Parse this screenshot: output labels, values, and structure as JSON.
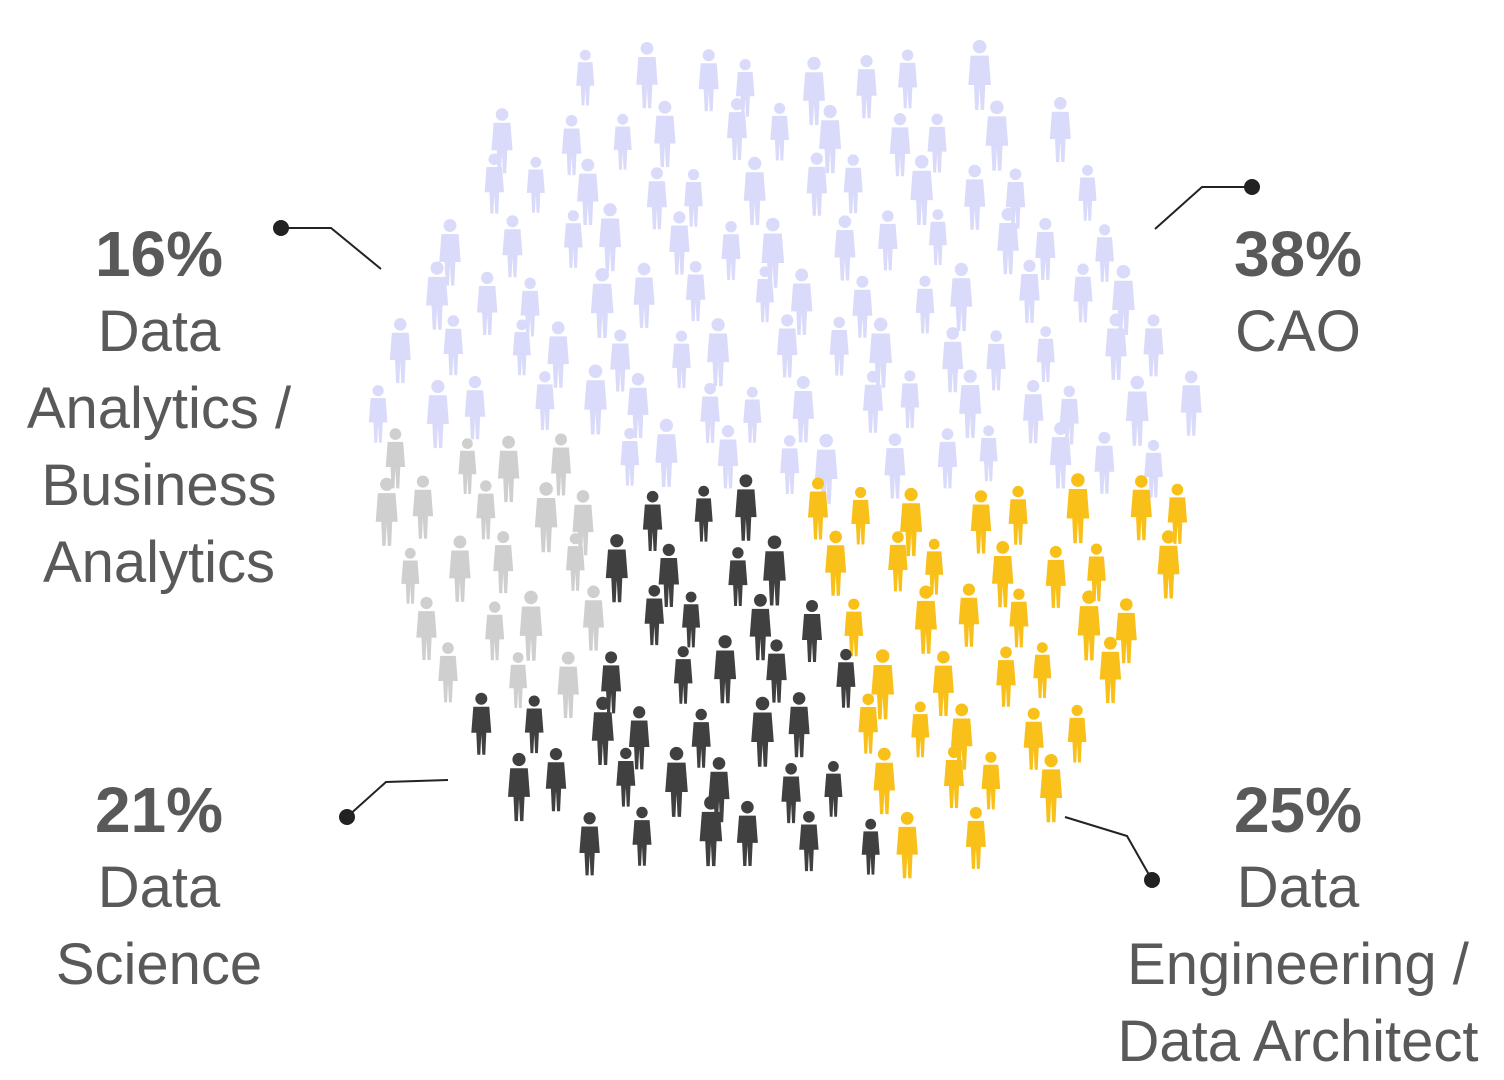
{
  "chart_data": {
    "type": "pictograph",
    "segments": [
      {
        "percent": "16%",
        "value": 16,
        "label": "Data Analytics / Business Analytics",
        "color": "#cfcfcf"
      },
      {
        "percent": "38%",
        "value": 38,
        "label": "CAO",
        "color": "#dadafa"
      },
      {
        "percent": "21%",
        "value": 21,
        "label": "Data Science",
        "color": "#404040"
      },
      {
        "percent": "25%",
        "value": 25,
        "label": "Data Engineering / Data Architect",
        "color": "#f8c019"
      }
    ],
    "label_color": "#595959",
    "connector_color": "#222222"
  }
}
